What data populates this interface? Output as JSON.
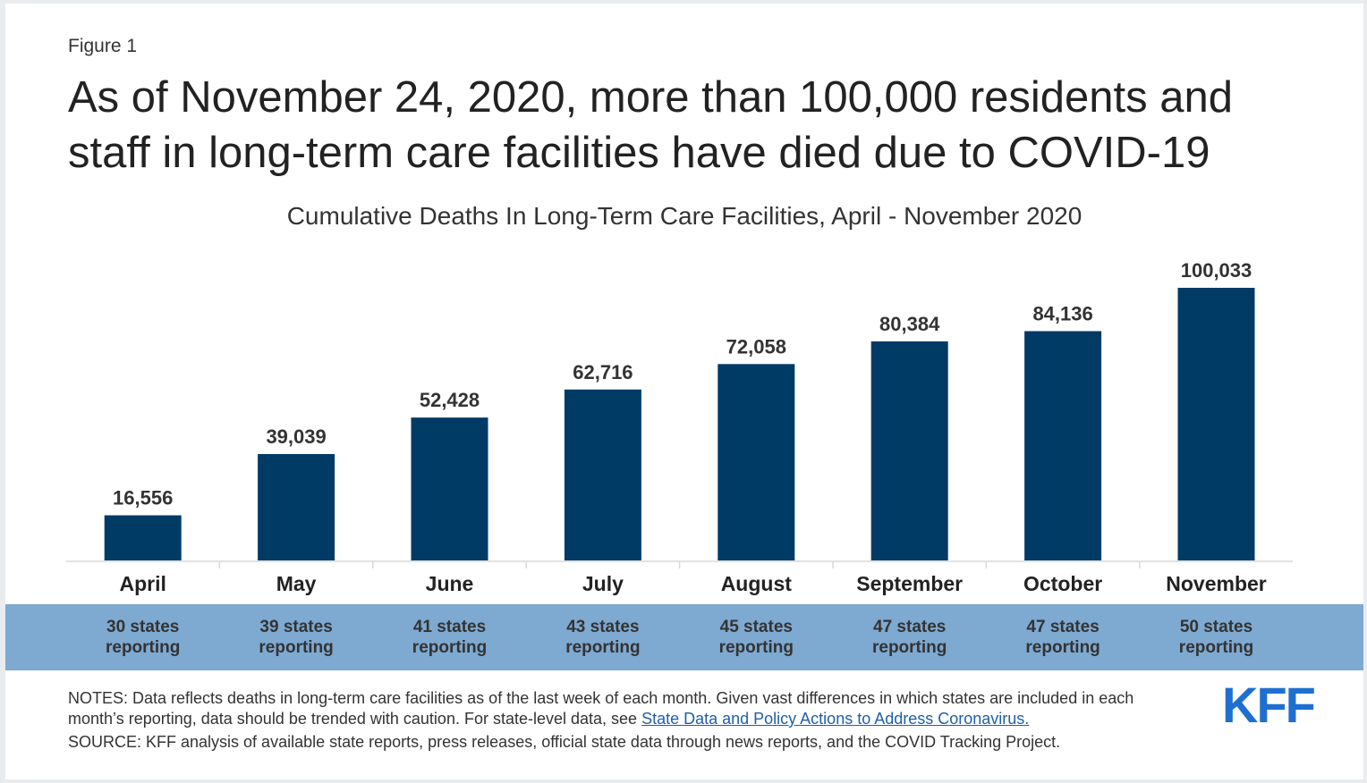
{
  "figure_label": "Figure 1",
  "headline": "As of November 24, 2020, more than 100,000 residents and staff in long-term care facilities have died due to COVID-19",
  "chart_data": {
    "type": "bar",
    "title": "Cumulative Deaths In Long-Term Care Facilities, April - November 2020",
    "categories": [
      "April",
      "May",
      "June",
      "July",
      "August",
      "September",
      "October",
      "November"
    ],
    "values": [
      16556,
      39039,
      52428,
      62716,
      72058,
      80384,
      84136,
      100033
    ],
    "value_labels": [
      "16,556",
      "39,039",
      "52,428",
      "62,716",
      "72,058",
      "80,384",
      "84,136",
      "100,033"
    ],
    "states_reporting": [
      [
        "30 states",
        "reporting"
      ],
      [
        "39 states",
        "reporting"
      ],
      [
        "41 states",
        "reporting"
      ],
      [
        "43 states",
        "reporting"
      ],
      [
        "45 states",
        "reporting"
      ],
      [
        "47 states",
        "reporting"
      ],
      [
        "47 states",
        "reporting"
      ],
      [
        "50 states",
        "reporting"
      ]
    ],
    "ylim": [
      0,
      100033
    ],
    "bar_color": "#003b66",
    "band_color": "#7ea9d1"
  },
  "notes": {
    "prefix": "NOTES: Data reflects deaths in long-term care facilities as of the last week of each month. Given vast differences in which states are included in each month’s reporting, data should be trended with caution. For state-level data, see ",
    "link_text": "State Data and Policy Actions to Address Coronavirus."
  },
  "source": "SOURCE: KFF analysis of available state reports, press releases, official state data through news reports, and the COVID Tracking Project.",
  "logo_text": "KFF"
}
